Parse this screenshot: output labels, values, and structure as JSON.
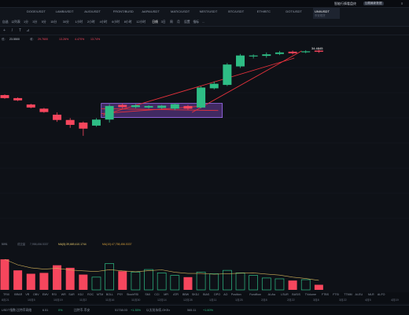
{
  "window": {
    "account_text": "智能行情看盘终",
    "pill_text": "加载最新数据",
    "menu_glyph": "≡"
  },
  "tabs": [
    {
      "symbol": "DOGE/USDT",
      "sub": ""
    },
    {
      "symbol": "LAMB/USDT",
      "sub": ""
    },
    {
      "symbol": "AUG/USDT",
      "sub": ""
    },
    {
      "symbol": "FRONT/BUSD",
      "sub": ""
    },
    {
      "symbol": "AAPA/USDT",
      "sub": ""
    },
    {
      "symbol": "MATIC/USDT",
      "sub": ""
    },
    {
      "symbol": "NEST/USDT",
      "sub": ""
    },
    {
      "symbol": "BTC/USDT",
      "sub": ""
    },
    {
      "symbol": "ETH/BTC",
      "sub": ""
    },
    {
      "symbol": "DOT/USDT",
      "sub": ""
    },
    {
      "symbol": "UNI/USDT",
      "sub": "币安现货"
    }
  ],
  "toolbar": {
    "items": [
      "自选",
      "以列表",
      "1分",
      "3分",
      "5分",
      "15分",
      "30分",
      "1小时",
      "2小时",
      "4小时",
      "6小时",
      "8小时",
      "12小时",
      "日线",
      "3日",
      "周",
      "月",
      "设置",
      "指标",
      "…"
    ],
    "selected_index": 13
  },
  "info": {
    "prefix": "",
    "low_label": "低:",
    "low": "23.5500",
    "close_label": "收:",
    "close": "29.7600",
    "change": "13.26%",
    "change2": "4.470%",
    "amp": "13.74%"
  },
  "chart_data": {
    "type": "candlestick",
    "price_label": "34.4845",
    "candles": [
      [
        0.0,
        0.262,
        0.246,
        0.266,
        0.242,
        "d"
      ],
      [
        0.032,
        0.274,
        0.262,
        0.278,
        0.258,
        "d"
      ],
      [
        0.064,
        0.312,
        0.296,
        0.316,
        0.292,
        "d"
      ],
      [
        0.096,
        0.336,
        0.318,
        0.34,
        0.314,
        "d"
      ],
      [
        0.128,
        0.378,
        0.35,
        0.388,
        0.338,
        "d"
      ],
      [
        0.16,
        0.404,
        0.378,
        0.42,
        0.368,
        "d"
      ],
      [
        0.192,
        0.424,
        0.392,
        0.462,
        0.386,
        "d"
      ],
      [
        0.224,
        0.408,
        0.376,
        0.414,
        0.368,
        "u"
      ],
      [
        0.256,
        0.376,
        0.304,
        0.392,
        0.294,
        "u"
      ],
      [
        0.288,
        0.31,
        0.298,
        0.318,
        0.29,
        "d"
      ],
      [
        0.32,
        0.31,
        0.3,
        0.316,
        0.294,
        "u"
      ],
      [
        0.352,
        0.312,
        0.304,
        0.318,
        0.3,
        "u"
      ],
      [
        0.384,
        0.314,
        0.302,
        0.32,
        0.298,
        "u"
      ],
      [
        0.416,
        0.318,
        0.294,
        0.326,
        0.29,
        "u"
      ],
      [
        0.448,
        0.318,
        0.304,
        0.324,
        0.298,
        "d"
      ],
      [
        0.48,
        0.312,
        0.206,
        0.316,
        0.2,
        "u"
      ],
      [
        0.512,
        0.21,
        0.186,
        0.216,
        0.174,
        "u"
      ],
      [
        0.544,
        0.192,
        0.084,
        0.198,
        0.076,
        "u"
      ],
      [
        0.576,
        0.094,
        0.036,
        0.102,
        0.028,
        "u"
      ],
      [
        0.608,
        0.04,
        0.036,
        0.052,
        0.03,
        "u"
      ],
      [
        0.64,
        0.038,
        0.03,
        0.048,
        0.02,
        "u"
      ],
      [
        0.672,
        0.028,
        0.02,
        0.034,
        0.012,
        "u"
      ],
      [
        0.704,
        0.024,
        0.016,
        0.03,
        0.01,
        "d"
      ],
      [
        0.736,
        0.018,
        0.014,
        0.024,
        0.008,
        "u"
      ],
      [
        0.768,
        0.016,
        0.01,
        0.022,
        0.006,
        "d"
      ]
    ],
    "volume": [
      [
        0.0,
        0.72,
        "d"
      ],
      [
        0.032,
        0.46,
        "d"
      ],
      [
        0.064,
        0.38,
        "d"
      ],
      [
        0.096,
        0.4,
        "d"
      ],
      [
        0.128,
        0.58,
        "d"
      ],
      [
        0.16,
        0.52,
        "d"
      ],
      [
        0.192,
        0.36,
        "d"
      ],
      [
        0.224,
        0.3,
        "u"
      ],
      [
        0.256,
        0.62,
        "u"
      ],
      [
        0.288,
        0.44,
        "d"
      ],
      [
        0.32,
        0.42,
        "u"
      ],
      [
        0.352,
        0.48,
        "u"
      ],
      [
        0.384,
        0.4,
        "u"
      ],
      [
        0.416,
        0.34,
        "u"
      ],
      [
        0.448,
        0.3,
        "d"
      ],
      [
        0.48,
        0.42,
        "u"
      ],
      [
        0.512,
        0.38,
        "u"
      ],
      [
        0.544,
        0.46,
        "u"
      ],
      [
        0.576,
        0.4,
        "u"
      ],
      [
        0.608,
        0.34,
        "u"
      ],
      [
        0.64,
        0.28,
        "u"
      ],
      [
        0.672,
        0.26,
        "u"
      ],
      [
        0.704,
        0.22,
        "d"
      ],
      [
        0.736,
        0.24,
        "u"
      ],
      [
        0.768,
        0.12,
        "d"
      ]
    ],
    "colors": {
      "up": "#2ebd85",
      "down": "#f6465d",
      "trend": "#e8323c",
      "box_fill": "#6b3fa0",
      "box_border": "#9c6cf0"
    }
  },
  "volume_info": {
    "label": "5091",
    "vol_label": "成交量",
    "vol_value": "7,958,456.5337",
    "ma5_label": "MA(5):39,669,410.1744",
    "ma10_label": "MA(10):47,758,456.5337"
  },
  "indicators": [
    "TRIX",
    "BRAR",
    "VR",
    "OBV",
    "EMV",
    "RSI",
    "WR",
    "SAR",
    "KDJ",
    "ROC",
    "MTM",
    "BOLL",
    "PSY",
    "StochRSI",
    "SMI",
    "CCI",
    "MFI",
    "ATR",
    "BBW",
    "SKDJ",
    "BIAS",
    "DPO",
    "AO",
    "Position",
    "Fundflow",
    "AI-Aw",
    "LSUR",
    "BASIS",
    "TVolume",
    "FTBS",
    "FTSI",
    "TTMM",
    "AI-EU",
    "MLR",
    "AI-FO"
  ],
  "time_axis": [
    "8月21",
    "10月5",
    "10月19",
    "11月2",
    "11月16",
    "11月30",
    "12月14",
    "12月28",
    "1月11",
    "1月25",
    "2月8",
    "2月22",
    "3月8",
    "3月22",
    "4月5",
    "4月19"
  ],
  "footer": {
    "items": [
      {
        "label": "USDT指数-比特币网络",
        "value": "6.51",
        "change": "0%"
      },
      {
        "label": "比特币-币安",
        "value": "51738.03",
        "change": "+1.35%"
      },
      {
        "label": "以太坊永续-OKEx",
        "value": "565.11",
        "change": "+1.60%"
      }
    ]
  }
}
